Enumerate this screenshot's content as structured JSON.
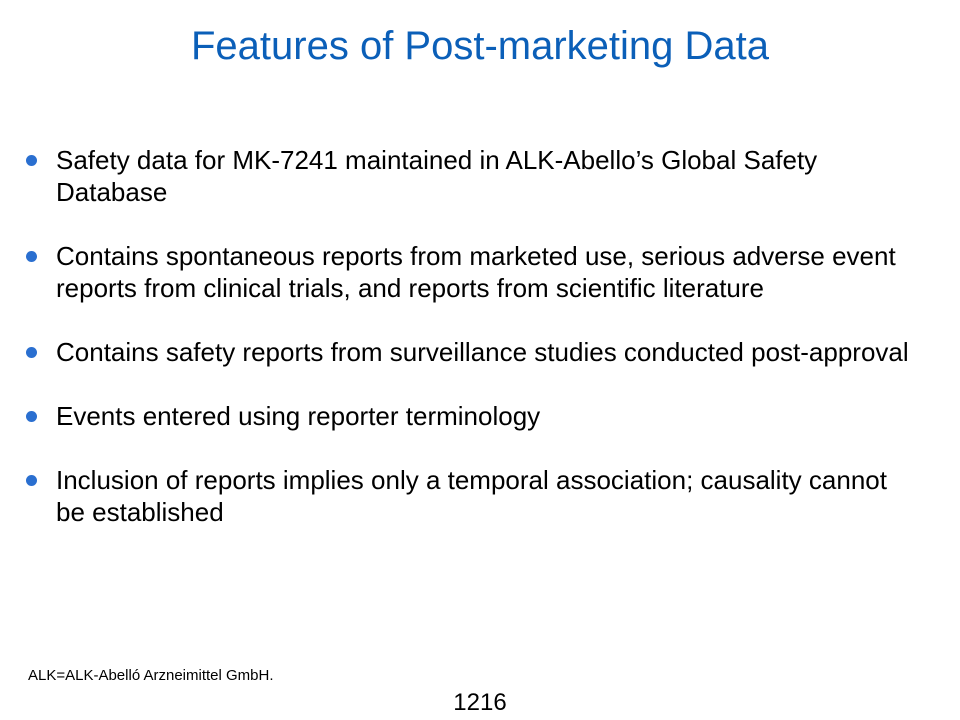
{
  "slide": {
    "title": "Features of Post-marketing Data",
    "bullet_color": "#2a6fd0",
    "title_color": "#0b5fb8",
    "bullets": [
      {
        "text": "Safety data for MK-7241 maintained in ALK-Abello’s Global Safety Database"
      },
      {
        "text": "Contains spontaneous reports from marketed use, serious adverse event reports from clinical trials, and reports from scientific literature"
      },
      {
        "text": "Contains safety reports from surveillance studies conducted post-approval"
      },
      {
        "text": "Events entered using reporter terminology"
      },
      {
        "text": "Inclusion of reports implies only a temporal association; causality cannot be established"
      }
    ],
    "footnote": "ALK=ALK-Abelló Arzneimittel GmbH.",
    "page_number": "1216"
  }
}
